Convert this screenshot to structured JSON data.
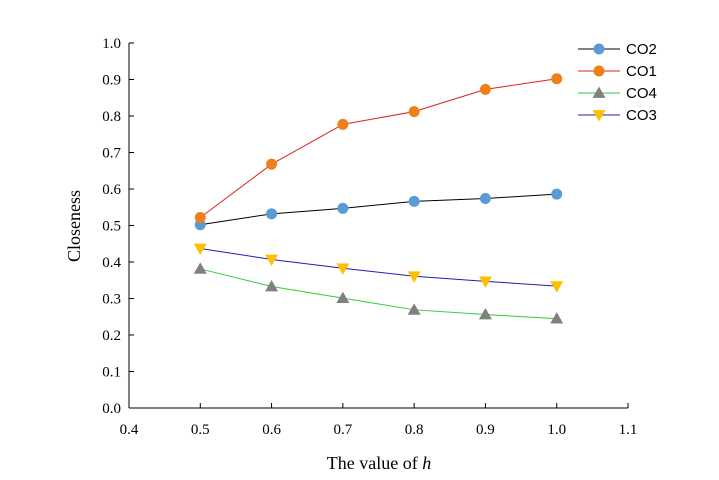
{
  "chart_data": {
    "type": "line",
    "title": "",
    "xlabel": "The value of ",
    "xlabel_italic": "h",
    "ylabel": "Closeness",
    "xlim": [
      0.4,
      1.1
    ],
    "ylim": [
      0.0,
      1.0
    ],
    "x_ticks": [
      "0.4",
      "0.5",
      "0.6",
      "0.7",
      "0.8",
      "0.9",
      "1.0",
      "1.1"
    ],
    "y_ticks": [
      "0.0",
      "0.1",
      "0.2",
      "0.3",
      "0.4",
      "0.5",
      "0.6",
      "0.7",
      "0.8",
      "0.9",
      "1.0"
    ],
    "x": [
      0.5,
      0.6,
      0.7,
      0.8,
      0.9,
      1.0
    ],
    "legend_position": "top-right",
    "series": [
      {
        "name": "CO2",
        "line_color": "#000000",
        "marker": "circle",
        "marker_color": "#5B9BD5",
        "values": [
          0.502,
          0.532,
          0.547,
          0.566,
          0.574,
          0.586
        ]
      },
      {
        "name": "CO1",
        "line_color": "#E0201B",
        "marker": "circle",
        "marker_color": "#F07F1A",
        "values": [
          0.522,
          0.668,
          0.777,
          0.812,
          0.873,
          0.902
        ]
      },
      {
        "name": "CO4",
        "line_color": "#33CC33",
        "marker": "triangle-up",
        "marker_color": "#808080",
        "values": [
          0.381,
          0.333,
          0.301,
          0.269,
          0.256,
          0.245
        ]
      },
      {
        "name": "CO3",
        "line_color": "#1F1FB4",
        "marker": "triangle-down",
        "marker_color": "#FFC000",
        "values": [
          0.437,
          0.407,
          0.383,
          0.361,
          0.347,
          0.334
        ]
      }
    ]
  }
}
